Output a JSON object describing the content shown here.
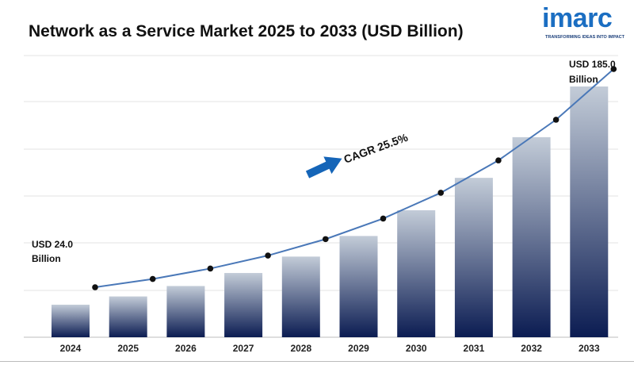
{
  "brand": {
    "logo_text": "imarc",
    "tagline": "TRANSFORMING IDEAS INTO IMPACT",
    "accent_color": "#1b6ec2"
  },
  "chart_data": {
    "type": "bar",
    "title": "Network as a Service Market 2025 to 2033 (USD Billion)",
    "categories": [
      "2024",
      "2025",
      "2026",
      "2027",
      "2028",
      "2029",
      "2030",
      "2031",
      "2032",
      "2033"
    ],
    "values": [
      24.0,
      30.1,
      37.8,
      47.4,
      59.5,
      74.7,
      93.7,
      117.6,
      147.6,
      185.0
    ],
    "trend_line": true,
    "annotations": {
      "start_label_line1": "USD 24.0",
      "start_label_line2": "Billion",
      "end_label_line1": "USD 185.0",
      "end_label_line2": "Billion",
      "cagr_label": "CAGR 25.5%"
    },
    "grid": true,
    "colors": {
      "bar_top": "#c3ccd8",
      "bar_bottom": "#0b1c52",
      "line": "#4a78b8",
      "marker": "#111111",
      "arrow": "#1565b8"
    }
  }
}
